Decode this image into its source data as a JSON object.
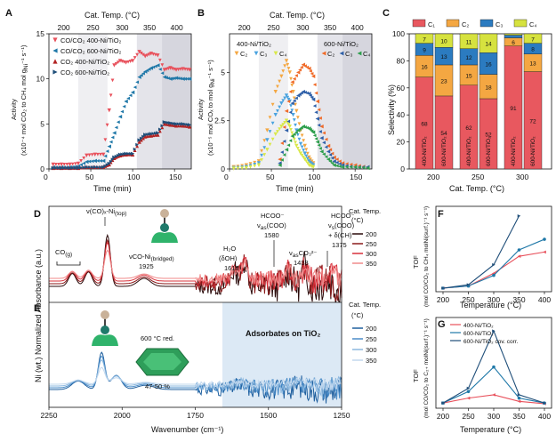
{
  "panels": {
    "A": {
      "letter": "A",
      "top_axis_label": "Cat. Temp. (°C)",
      "top_ticks": [
        "200",
        "250",
        "300",
        "350",
        "400"
      ],
      "xlabel": "Time (min)",
      "ylabel_line1": "Activity",
      "ylabel_line2": "(x10⁻⁴ mol CO₂ to CH₄ mol g",
      "ylabel_sub": "Ni",
      "ylabel_end": "⁻¹ s⁻¹)",
      "legend": [
        "CO/CO₂ 400-Ni/TiO₂",
        "CO/CO₂ 600-Ni/TiO₂",
        "CO₂  400-Ni/TiO₂",
        "CO₂  600-Ni/TiO₂"
      ],
      "colors": [
        "#e8505b",
        "#1f78a8",
        "#b22222",
        "#1f4e79"
      ]
    },
    "B": {
      "letter": "B",
      "top_axis_label": "Cat. Temp. (°C)",
      "top_ticks": [
        "200",
        "250",
        "300",
        "350",
        "400"
      ],
      "xlabel": "Time (min)",
      "ylabel_line1": "Activity",
      "ylabel_line2": "(x10⁻⁵ mol COₓ to mol g",
      "ylabel_sub": "Ni",
      "ylabel_end": "⁻¹ s⁻¹)",
      "label_left": "400-Ni/TiO₂",
      "label_right": "600-Ni/TiO₂",
      "legend_left": [
        "C₂",
        "C₃",
        "C₄"
      ],
      "legend_right": [
        "C₂",
        "C₃",
        "C₄"
      ],
      "colors_left": [
        "#f4a742",
        "#4aa3df",
        "#d9e84a"
      ],
      "colors_right": [
        "#f06a28",
        "#2e5fa8",
        "#2c9e4b"
      ]
    },
    "C": {
      "letter": "C",
      "legend": [
        "C₁",
        "C₂",
        "C₃",
        "C₄"
      ],
      "colors": [
        "#e8585f",
        "#f4a742",
        "#2b7bc0",
        "#d6e23f"
      ],
      "xlabel": "Cat. Temp. (°C)",
      "ylabel": "Selectivity (%)",
      "bar_label_400": "400-Ni/TiO₂",
      "bar_label_600": "600-Ni/TiO₂"
    },
    "D": {
      "letter": "D",
      "legend_title": "Cat. Temp.",
      "legend_unit": "(°C)",
      "legend": [
        "200",
        "250",
        "300",
        "350"
      ],
      "colors": [
        "#2a0a0a",
        "#8b1a1a",
        "#d9303a",
        "#f08a8a"
      ],
      "ann_co_ni_top": "ν(CO)ₓ-Ni",
      "ann_co_ni_top_sub": "(top)",
      "ann_cog": "CO",
      "ann_cog_sub": "(g)",
      "ann_co_bridged": "νCO-Ni",
      "ann_co_bridged_sub": "(bridged)",
      "ann_1925": "1925",
      "ann_h2o": "H₂O",
      "ann_doh": "(δOH)",
      "ann_1616": "1616",
      "ann_hcoo1": "HCOO⁻",
      "ann_vas": "ν",
      "ann_vas_sub": "as",
      "ann_vas_end": "(COO)",
      "ann_1580": "1580",
      "ann_co3": "CO₃²⁻",
      "ann_1433": "1433",
      "ann_hcoo2": "HCOO⁻",
      "ann_vs": "ν",
      "ann_vs_sub": "s",
      "ann_vs_end": "(COO)",
      "ann_dch": "+ δ(CH)",
      "ann_1375": "1375"
    },
    "E": {
      "letter": "E",
      "legend_title": "Cat. Temp.",
      "legend_unit": "(°C)",
      "legend": [
        "200",
        "250",
        "300",
        "350"
      ],
      "colors": [
        "#1f5f9e",
        "#4a8cc8",
        "#8cb8df",
        "#c2d8ee"
      ],
      "region_label": "Adsorbates on TiO₂",
      "red_label": "600 °C red.",
      "pct_label": "47-50 %",
      "xlabel": "Wavenumber (cm⁻¹)",
      "x_ticks": [
        "2250",
        "2000",
        "1750",
        "1500",
        "1250"
      ]
    },
    "DE_ylabel": "Ni (wt.) Normalized Absorbance (a.u.)",
    "F": {
      "letter": "F",
      "ylabel_top": "TOF",
      "ylabel_bottom": "(mol CO/CO₂ to CH₄ molNi(surf.)⁻¹ s⁻¹)",
      "xlabel": "Temperature (°C)",
      "colors": [
        "#e8505b",
        "#1f78a8",
        "#1f4e79"
      ]
    },
    "G": {
      "letter": "G",
      "ylabel_top": "TOF",
      "ylabel_bottom": "(mol CO/CO₂ to C₂₊ molNi(surf.)⁻¹ s⁻¹)",
      "xlabel": "Temperature (°C)",
      "legend": [
        "400-Ni/TiO₂",
        "600-Ni/TiO₂",
        "600-Ni/TiO₂ cov. corr."
      ],
      "colors": [
        "#e8505b",
        "#1f78a8",
        "#1f4e79"
      ]
    }
  },
  "chart_data": [
    {
      "type": "scatter",
      "panel": "A",
      "xlim": [
        0,
        170
      ],
      "ylim": [
        0,
        15
      ],
      "x_ticks": [
        0,
        50,
        100,
        150
      ],
      "y_ticks": [
        0,
        5,
        10,
        15
      ],
      "temperature_segments_min": [
        [
          0,
          35,
          "200"
        ],
        [
          35,
          70,
          "250"
        ],
        [
          70,
          105,
          "300"
        ],
        [
          105,
          135,
          "350"
        ],
        [
          135,
          170,
          "400"
        ]
      ],
      "series": [
        {
          "name": "CO/CO₂ 400-Ni/TiO₂",
          "x": [
            5,
            15,
            25,
            35,
            45,
            55,
            65,
            72,
            78,
            85,
            92,
            100,
            108,
            115,
            122,
            130,
            138,
            145,
            152,
            160,
            168
          ],
          "y": [
            0.5,
            0.5,
            0.5,
            0.6,
            1.5,
            1.6,
            1.6,
            6.5,
            11.5,
            12.0,
            11.8,
            12.0,
            13.0,
            12.5,
            12.8,
            12.6,
            11.0,
            11.2,
            11.0,
            11.1,
            11.0
          ]
        },
        {
          "name": "CO/CO₂ 600-Ni/TiO₂",
          "x": [
            5,
            15,
            25,
            35,
            45,
            55,
            65,
            72,
            78,
            85,
            92,
            100,
            108,
            115,
            122,
            130,
            138,
            145,
            152,
            160,
            168
          ],
          "y": [
            0.2,
            0.2,
            0.2,
            0.3,
            0.8,
            0.9,
            0.9,
            2.5,
            4.0,
            5.8,
            7.5,
            8.5,
            10.2,
            10.8,
            11.2,
            11.5,
            10.2,
            10.0,
            10.1,
            10.0,
            10.0
          ]
        },
        {
          "name": "CO₂ 400-Ni/TiO₂",
          "x": [
            5,
            15,
            25,
            35,
            45,
            55,
            65,
            72,
            78,
            85,
            92,
            100,
            108,
            115,
            122,
            130,
            138,
            145,
            152,
            160,
            168
          ],
          "y": [
            0.1,
            0.1,
            0.1,
            0.1,
            0.2,
            0.2,
            0.2,
            0.5,
            1.2,
            1.5,
            1.6,
            1.6,
            3.0,
            3.6,
            3.7,
            3.8,
            5.0,
            4.9,
            4.8,
            4.8,
            4.7
          ]
        },
        {
          "name": "CO₂ 600-Ni/TiO₂",
          "x": [
            5,
            15,
            25,
            35,
            45,
            55,
            65,
            72,
            78,
            85,
            92,
            100,
            108,
            115,
            122,
            130,
            138,
            145,
            152,
            160,
            168
          ],
          "y": [
            0.1,
            0.1,
            0.1,
            0.1,
            0.2,
            0.2,
            0.2,
            0.6,
            1.3,
            1.6,
            1.7,
            1.7,
            3.2,
            3.8,
            3.9,
            4.0,
            5.2,
            5.1,
            5.0,
            5.0,
            4.9
          ]
        }
      ]
    },
    {
      "type": "scatter",
      "panel": "B",
      "xlim": [
        0,
        170
      ],
      "ylim": [
        0,
        7
      ],
      "x_ticks": [
        0,
        50,
        100,
        150
      ],
      "y_ticks": [
        0,
        2.5,
        5
      ],
      "series": [
        {
          "name": "400 C₂",
          "x": [
            5,
            20,
            35,
            45,
            55,
            62,
            68,
            72,
            76,
            80,
            85,
            90,
            95,
            100
          ],
          "y": [
            0.1,
            0.2,
            0.4,
            2.0,
            4.0,
            4.8,
            5.6,
            5.0,
            4.0,
            3.0,
            2.0,
            1.2,
            0.6,
            0.3
          ]
        },
        {
          "name": "400 C₃",
          "x": [
            5,
            20,
            35,
            45,
            55,
            62,
            68,
            72,
            76,
            80,
            85,
            90,
            95,
            100
          ],
          "y": [
            0.05,
            0.1,
            0.3,
            1.5,
            2.8,
            3.4,
            3.8,
            3.5,
            2.8,
            2.0,
            1.3,
            0.8,
            0.4,
            0.2
          ]
        },
        {
          "name": "400 C₄",
          "x": [
            5,
            20,
            35,
            45,
            55,
            62,
            68,
            72,
            76,
            80,
            85,
            90,
            95,
            100
          ],
          "y": [
            0.02,
            0.05,
            0.2,
            1.0,
            1.8,
            2.2,
            2.5,
            2.2,
            1.7,
            1.2,
            0.8,
            0.5,
            0.2,
            0.1
          ]
        },
        {
          "name": "600 C₂",
          "x": [
            60,
            68,
            75,
            82,
            88,
            95,
            100,
            105,
            110,
            118,
            125,
            135,
            150,
            165
          ],
          "y": [
            0.5,
            3.0,
            4.5,
            5.0,
            5.4,
            5.2,
            4.8,
            3.5,
            2.2,
            1.2,
            0.6,
            0.3,
            0.2,
            0.1
          ]
        },
        {
          "name": "600 C₃",
          "x": [
            60,
            68,
            75,
            82,
            88,
            95,
            100,
            105,
            110,
            118,
            125,
            135,
            150,
            165
          ],
          "y": [
            0.3,
            2.0,
            3.4,
            3.8,
            4.0,
            3.9,
            3.6,
            2.6,
            1.6,
            0.9,
            0.4,
            0.2,
            0.1,
            0.1
          ]
        },
        {
          "name": "600 C₄",
          "x": [
            60,
            68,
            75,
            82,
            88,
            95,
            100,
            105,
            110,
            118,
            125,
            135,
            150,
            165
          ],
          "y": [
            0.2,
            1.0,
            1.7,
            2.0,
            2.2,
            2.1,
            1.9,
            1.4,
            0.9,
            0.5,
            0.2,
            0.1,
            0.1,
            0.05
          ]
        }
      ]
    },
    {
      "type": "bar",
      "panel": "C",
      "categories": [
        "200",
        "250",
        "300"
      ],
      "ylim": [
        0,
        100
      ],
      "y_ticks": [
        0,
        20,
        40,
        60,
        80,
        100
      ],
      "bars": [
        {
          "temp": "200",
          "catalyst": "400",
          "C1": 68,
          "C2": 16,
          "C3": 9,
          "C4": 7
        },
        {
          "temp": "200",
          "catalyst": "600",
          "C1": 54,
          "C2": 23,
          "C3": 13,
          "C4": 10
        },
        {
          "temp": "250",
          "catalyst": "400",
          "C1": 62,
          "C2": 15,
          "C3": 12,
          "C4": 11
        },
        {
          "temp": "250",
          "catalyst": "600",
          "C1": 52,
          "C2": 18,
          "C3": 16,
          "C4": 14
        },
        {
          "temp": "300",
          "catalyst": "400",
          "C1": 91,
          "C2": 6,
          "C3": 2,
          "C4": 1
        },
        {
          "temp": "300",
          "catalyst": "600",
          "C1": 72,
          "C2": 13,
          "C3": 8,
          "C4": 7
        }
      ]
    },
    {
      "type": "line",
      "panel": "D",
      "xlim": [
        2250,
        1250
      ],
      "series": [
        {
          "name": "200"
        },
        {
          "name": "250"
        },
        {
          "name": "300"
        },
        {
          "name": "350"
        }
      ]
    },
    {
      "type": "line",
      "panel": "E",
      "xlim": [
        2250,
        1250
      ],
      "series": [
        {
          "name": "200"
        },
        {
          "name": "250"
        },
        {
          "name": "300"
        },
        {
          "name": "350"
        }
      ]
    },
    {
      "type": "line",
      "panel": "F",
      "x": [
        200,
        250,
        300,
        350,
        400
      ],
      "x_ticks": [
        200,
        250,
        300,
        350,
        400
      ],
      "ylim": [
        0,
        1.8
      ],
      "series": [
        {
          "name": "400-Ni/TiO₂",
          "values": [
            0.0,
            0.05,
            0.35,
            0.75,
            0.85
          ]
        },
        {
          "name": "600-Ni/TiO₂",
          "values": [
            0.0,
            0.05,
            0.3,
            0.9,
            1.15
          ]
        },
        {
          "name": "600-Ni/TiO₂ cov. corr.",
          "values": [
            0.0,
            0.08,
            0.55,
            1.7,
            null
          ]
        }
      ]
    },
    {
      "type": "line",
      "panel": "G",
      "x": [
        200,
        250,
        300,
        350,
        400
      ],
      "x_ticks": [
        200,
        250,
        300,
        350,
        400
      ],
      "ylim": [
        0,
        0.25
      ],
      "series": [
        {
          "name": "400-Ni/TiO₂",
          "values": [
            0.005,
            0.02,
            0.03,
            0.01,
            0.003
          ]
        },
        {
          "name": "600-Ni/TiO₂",
          "values": [
            0.005,
            0.04,
            0.115,
            0.02,
            0.005
          ]
        },
        {
          "name": "600-Ni/TiO₂ cov. corr.",
          "values": [
            0.005,
            0.05,
            0.225,
            0.03,
            0.005
          ]
        }
      ]
    }
  ]
}
